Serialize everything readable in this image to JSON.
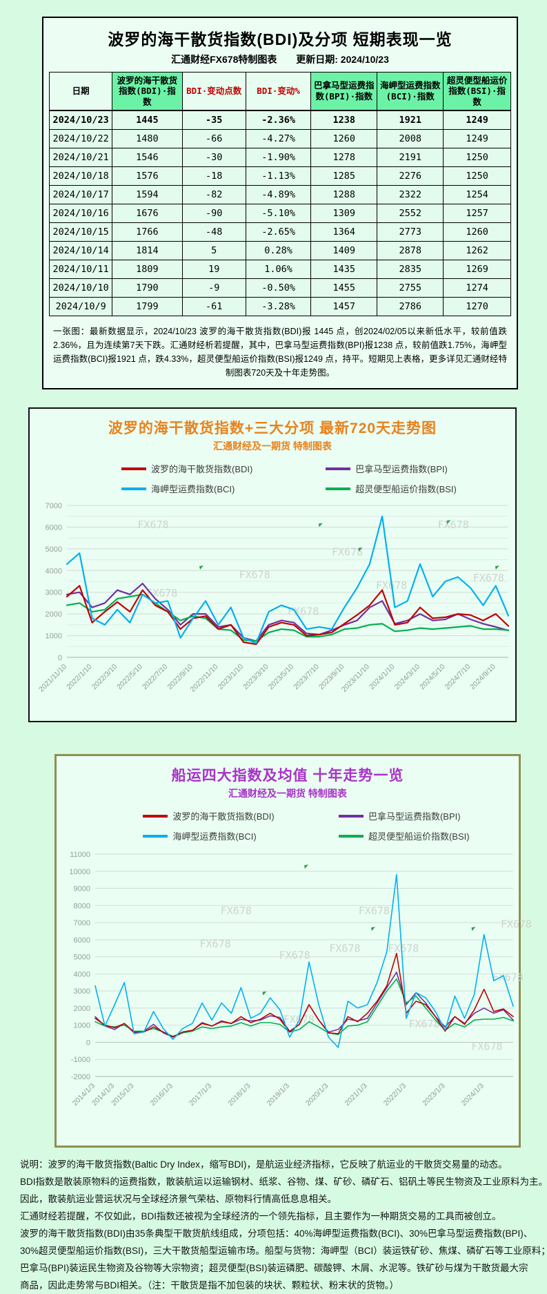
{
  "page": {
    "background": "#d6fbe2",
    "card_background": "#ecfef4"
  },
  "table_card": {
    "title": "波罗的海干散货指数(BDI)及分项 短期表现一览",
    "source_label": "汇通财经FX678特制图表",
    "update_label": "更新日期: 2024/10/23",
    "header_green": "#6cf2a6",
    "negative_header_color": "#c00000",
    "columns": [
      "日期",
      "波罗的海干散货指数(BDI)·指数",
      "BDI·变动点数",
      "BDI·变动%",
      "巴拿马型运费指数(BPI)·指数",
      "海岬型运费指数(BCI)·指数",
      "超灵便型船运价指数(BSI)·指数"
    ],
    "rows": [
      [
        "2024/10/23",
        "1445",
        "-35",
        "-2.36%",
        "1238",
        "1921",
        "1249"
      ],
      [
        "2024/10/22",
        "1480",
        "-66",
        "-4.27%",
        "1260",
        "2008",
        "1249"
      ],
      [
        "2024/10/21",
        "1546",
        "-30",
        "-1.90%",
        "1278",
        "2191",
        "1250"
      ],
      [
        "2024/10/18",
        "1576",
        "-18",
        "-1.13%",
        "1285",
        "2276",
        "1250"
      ],
      [
        "2024/10/17",
        "1594",
        "-82",
        "-4.89%",
        "1288",
        "2322",
        "1254"
      ],
      [
        "2024/10/16",
        "1676",
        "-90",
        "-5.10%",
        "1309",
        "2552",
        "1257"
      ],
      [
        "2024/10/15",
        "1766",
        "-48",
        "-2.65%",
        "1364",
        "2773",
        "1260"
      ],
      [
        "2024/10/14",
        "1814",
        "5",
        "0.28%",
        "1409",
        "2878",
        "1262"
      ],
      [
        "2024/10/11",
        "1809",
        "19",
        "1.06%",
        "1435",
        "2835",
        "1269"
      ],
      [
        "2024/10/10",
        "1790",
        "-9",
        "-0.50%",
        "1455",
        "2755",
        "1274"
      ],
      [
        "2024/10/9",
        "1799",
        "-61",
        "-3.28%",
        "1457",
        "2786",
        "1270"
      ]
    ],
    "note": "一张图：最新数据显示，2024/10/23 波罗的海干散货指数(BDI)报 1445 点，创2024/02/05以来新低水平，较前值跌2.36%，且为连续第7天下跌。汇通财经析若提醒，其中，巴拿马型运费指数(BPI)报1238 点，较前值跌1.75%，海岬型运费指数(BCI)报1921 点，跌4.33%，超灵便型船运价指数(BSI)报1249 点，持平。短期见上表格，更多详见汇通财经特制图表720天及十年走势图。"
  },
  "chart_data": [
    {
      "type": "line",
      "key": "bdi-720day",
      "title": "波罗的海干散货指数+三大分项  最新720天走势图",
      "subtitle": "汇通财经及一期货  特制图表",
      "title_color": "#e8821e",
      "grid": true,
      "legend_position": "top",
      "ylim": [
        0,
        7000
      ],
      "ytick_step": 1000,
      "yminor_step": 500,
      "xtick_positions": [
        0,
        2,
        4,
        6,
        8,
        10,
        12,
        14,
        16,
        18,
        20,
        22,
        24,
        26,
        28,
        30,
        32,
        34
      ],
      "xtick_labels": [
        "2021/11/10",
        "2022/1/10",
        "2022/3/10",
        "2022/5/10",
        "2022/7/10",
        "2022/9/10",
        "2022/11/10",
        "2023/1/10",
        "2023/3/10",
        "2023/5/10",
        "2023/7/10",
        "2023/9/10",
        "2023/11/10",
        "2024/1/10",
        "2024/3/10",
        "2024/5/10",
        "2024/7/10",
        "2024/9/10"
      ],
      "watermark": "FX678",
      "watermark_positions": [
        [
          0.16,
          0.15
        ],
        [
          0.84,
          0.15
        ],
        [
          0.6,
          0.33
        ],
        [
          0.39,
          0.48
        ],
        [
          0.18,
          0.6
        ],
        [
          0.7,
          0.55
        ],
        [
          0.92,
          0.5
        ],
        [
          0.5,
          0.72
        ]
      ],
      "marker_positions": [
        [
          0.57,
          0.12
        ],
        [
          0.66,
          0.28
        ],
        [
          0.86,
          0.1
        ],
        [
          0.97,
          0.4
        ],
        [
          0.3,
          0.4
        ]
      ],
      "series": [
        {
          "key": "bdi",
          "name": "波罗的海干散货指数(BDI)",
          "color": "#c00000",
          "values": [
            2800,
            3300,
            1600,
            2100,
            2550,
            2100,
            3100,
            2400,
            2100,
            1300,
            1800,
            1900,
            1300,
            1500,
            700,
            600,
            1400,
            1600,
            1500,
            1000,
            1050,
            1150,
            1550,
            1950,
            2400,
            3100,
            1500,
            1600,
            2300,
            1800,
            1850,
            2000,
            1950,
            1700,
            2000,
            1445
          ]
        },
        {
          "key": "bpi",
          "name": "巴拿马型运费指数(BPI)",
          "color": "#7030a0",
          "values": [
            2900,
            3000,
            2300,
            2500,
            3100,
            2900,
            3400,
            2700,
            2200,
            1500,
            2000,
            2000,
            1400,
            1500,
            900,
            750,
            1500,
            1700,
            1600,
            1100,
            1050,
            1250,
            1500,
            1700,
            2300,
            2600,
            1550,
            1700,
            2000,
            1700,
            1750,
            2000,
            1750,
            1550,
            1400,
            1238
          ]
        },
        {
          "key": "bci",
          "name": "海岬型运费指数(BCI)",
          "color": "#00b0f0",
          "values": [
            4300,
            4800,
            1800,
            1500,
            2200,
            1600,
            2900,
            2500,
            2600,
            900,
            1800,
            2600,
            1500,
            2300,
            900,
            650,
            2100,
            2400,
            2200,
            1300,
            1400,
            1300,
            2300,
            3200,
            4300,
            6500,
            2300,
            2600,
            4300,
            2800,
            3500,
            3700,
            3200,
            2400,
            3300,
            1921
          ]
        },
        {
          "key": "bsi",
          "name": "超灵便型船运价指数(BSI)",
          "color": "#00b050",
          "values": [
            2400,
            2500,
            2100,
            2200,
            2700,
            2800,
            2900,
            2500,
            2100,
            1700,
            1900,
            1800,
            1300,
            1250,
            800,
            750,
            1150,
            1300,
            1250,
            950,
            950,
            1050,
            1300,
            1350,
            1500,
            1550,
            1200,
            1250,
            1350,
            1300,
            1350,
            1400,
            1450,
            1300,
            1300,
            1249
          ]
        }
      ]
    },
    {
      "type": "line",
      "key": "four-index-10year",
      "title": "船运四大指数及均值 十年走势一览",
      "subtitle": "汇通财经及一期货 特制图表",
      "title_color": "#a832c8",
      "border_color": "#8e9051",
      "grid": true,
      "legend_position": "top",
      "ylim": [
        -2000,
        11000
      ],
      "ytick_step": 1000,
      "xtick_positions": [
        0,
        2,
        4,
        8,
        12,
        16,
        20,
        24,
        28,
        32,
        36,
        40
      ],
      "xtick_labels": [
        "2014/1/3",
        "2014/1/3",
        "2015/1/3",
        "2016/1/3",
        "2017/1/3",
        "2018/1/3",
        "2019/1/3",
        "2020/1/3",
        "2021/1/3",
        "2022/1/3",
        "2023/1/3",
        "2024/1/3"
      ],
      "watermark": "FX678",
      "watermark_positions": [
        [
          0.3,
          0.27
        ],
        [
          0.63,
          0.27
        ],
        [
          0.25,
          0.42
        ],
        [
          0.44,
          0.47
        ],
        [
          0.56,
          0.44
        ],
        [
          0.7,
          0.44
        ],
        [
          0.97,
          0.33
        ],
        [
          0.95,
          0.57
        ],
        [
          0.45,
          0.76
        ],
        [
          0.75,
          0.78
        ],
        [
          0.9,
          0.88
        ]
      ],
      "marker_positions": [
        [
          0.5,
          0.05
        ],
        [
          0.66,
          0.33
        ],
        [
          0.9,
          0.33
        ],
        [
          0.4,
          0.62
        ]
      ],
      "series": [
        {
          "key": "bdi",
          "name": "波罗的海干散货指数(BDI)",
          "color": "#c00000",
          "values": [
            1400,
            1000,
            850,
            1100,
            600,
            600,
            900,
            600,
            320,
            600,
            700,
            1100,
            950,
            1200,
            1100,
            1500,
            1150,
            1350,
            1700,
            1350,
            600,
            1050,
            2200,
            1300,
            550,
            500,
            1500,
            1200,
            1700,
            2400,
            3300,
            5200,
            1700,
            2400,
            2200,
            1500,
            650,
            1500,
            1050,
            1900,
            3100,
            1800,
            1950,
            1500
          ]
        },
        {
          "key": "bpi",
          "name": "巴拿马型运费指数(BPI)",
          "color": "#7030a0",
          "values": [
            1500,
            950,
            750,
            1100,
            550,
            650,
            1050,
            550,
            300,
            550,
            700,
            1150,
            950,
            1250,
            1100,
            1350,
            1250,
            1300,
            1550,
            1450,
            650,
            1050,
            2200,
            1300,
            600,
            750,
            1350,
            1250,
            1400,
            2300,
            3200,
            4100,
            2200,
            2900,
            2300,
            1500,
            900,
            1500,
            1100,
            1700,
            2000,
            1700,
            1900,
            1300
          ]
        },
        {
          "key": "bci",
          "name": "海岬型运费指数(BCI)",
          "color": "#00b0f0",
          "values": [
            3300,
            950,
            2200,
            3500,
            500,
            600,
            1800,
            800,
            170,
            800,
            1100,
            2300,
            1300,
            2300,
            1700,
            3200,
            1400,
            1700,
            2600,
            1900,
            300,
            1300,
            4700,
            2200,
            300,
            -300,
            2400,
            2000,
            2200,
            3500,
            5300,
            9800,
            1400,
            2900,
            2600,
            1800,
            700,
            2700,
            1400,
            2800,
            6300,
            3600,
            3900,
            2100
          ]
        },
        {
          "key": "bsi",
          "name": "超灵便型船运价指数(BSI)",
          "color": "#00b050",
          "values": [
            1200,
            950,
            900,
            1000,
            650,
            650,
            800,
            600,
            350,
            550,
            650,
            900,
            800,
            900,
            950,
            1150,
            950,
            1150,
            1150,
            1050,
            600,
            750,
            1200,
            900,
            550,
            450,
            950,
            1000,
            1200,
            2100,
            3000,
            3700,
            2300,
            2700,
            2000,
            1300,
            700,
            1100,
            900,
            1300,
            1350,
            1350,
            1450,
            1250
          ]
        }
      ]
    }
  ],
  "footer": {
    "lines": [
      "说明：波罗的海干散货指数(Baltic Dry Index，缩写BDI)，是航运业经济指标，它反映了航运业的干散货交易量的动态。",
      "BDI指数是散装原物料的运费指数，散装航运以运输钢材、纸浆、谷物、煤、矿砂、磷矿石、铝矾土等民生物资及工业原料为主。",
      "因此，散装航运业营运状况与全球经济景气荣枯、原物料行情高低息息相关。",
      "汇通财经若提醒，不仅如此，BDI指数还被视为全球经济的一个领先指标，且主要作为一种期货交易的工具而被创立。",
      "波罗的海干散货指数(BDI)由35条典型干散货航线组成，分项包括：40%海岬型运费指数(BCI)、30%巴拿马型运费指数(BPI)、",
      "30%超灵便型船运价指数(BSI)，三大干散货船型运输市场。船型与货物：海岬型（BCI）装运铁矿砂、焦煤、磷矿石等工业原料；",
      "巴拿马(BPI)装运民生物资及谷物等大宗物资；超灵便型(BSI)装运磷肥、碳酸钾、木屑、水泥等。铁矿砂与煤为干散货最大宗",
      "商品，因此走势常与BDI相关。（注：干散货是指不加包装的块状、颗粒状、粉末状的货物。）"
    ]
  }
}
